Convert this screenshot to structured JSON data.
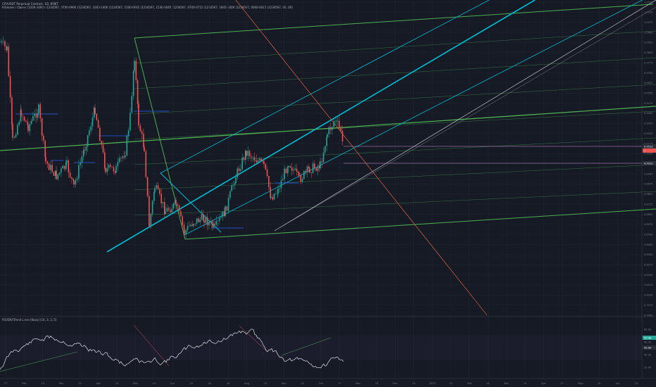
{
  "header": {
    "title": "CRVUSDT Perpetual Contract, 1D, BYBIT",
    "indicator": "Killzones / Opens [1200-1400 (-1234567, 0700-0900 (1234567, 1000-1400 (1234567, 1500-0945 (1234567, 1530-1645 (1234567, 0700-0715 (1234567, 1845-1600 (1234567, 0000-0015 (1234567, 00, 00]",
    "rsi_label": "RSI/DIV/Trend Lines [Koza] (14, 3, 3, 5)"
  },
  "price_axis": {
    "ticks": [
      "1.0225",
      "1.0150",
      "1.0075",
      "1.0000",
      "0.9925",
      "0.9850",
      "0.9775",
      "0.9700",
      "0.9625",
      "0.9550",
      "0.9475",
      "0.9400",
      "0.9325",
      "0.9250",
      "0.9175",
      "0.9100",
      "0.9025",
      "0.8950",
      "0.8875",
      "0.8800",
      "0.8725",
      "0.8650",
      "0.8575",
      "0.8500",
      "0.8425",
      "0.8350",
      "0.8275",
      "0.8200",
      "0.8125",
      "0.8050",
      "0.7975",
      "0.7900"
    ],
    "current_price": "0.9512",
    "current_label_2": "7",
    "secondary_price": "0.9312"
  },
  "rsi_axis": {
    "ticks": [
      "80.00",
      "60.00",
      "40.00",
      "20.00"
    ],
    "rsi_value": "55.48",
    "rsi_value_2": "50.00"
  },
  "time_axis": {
    "labels": [
      "17",
      "Feb",
      "14",
      "Mar",
      "14",
      "Apr",
      "14",
      "May",
      "14",
      "Jun",
      "14",
      "Jul",
      "14",
      "Aug",
      "15",
      "Sep",
      "14",
      "Oct",
      "17",
      "Nov",
      "14",
      "Dec",
      "15",
      "2023",
      "14",
      "Feb",
      "14",
      "Mar",
      "14",
      "Apr",
      "17",
      "May",
      "15",
      "Jun",
      "13"
    ]
  },
  "colors": {
    "background": "#161a25",
    "grid": "#222633",
    "bull": "#26a69a",
    "bear": "#ef5350",
    "green_line": "#4caf50",
    "cyan_line": "#00bcd4",
    "orange_line": "#ff7043",
    "white_line": "#d1d4dc",
    "level_line": "#ce93d8"
  },
  "chart_data": [
    {
      "type": "candlestick",
      "series": [
        {
          "name": "CRVUSDT",
          "values": []
        }
      ],
      "y_range": [
        0.79,
        1.03
      ],
      "grid": true,
      "note_lines": [
        "pitchfork",
        "parallel channel",
        "trend lines",
        "horizontal levels"
      ]
    },
    {
      "type": "line",
      "series": [
        {
          "name": "RSI",
          "values": []
        }
      ],
      "ylim": [
        0,
        100
      ]
    }
  ]
}
